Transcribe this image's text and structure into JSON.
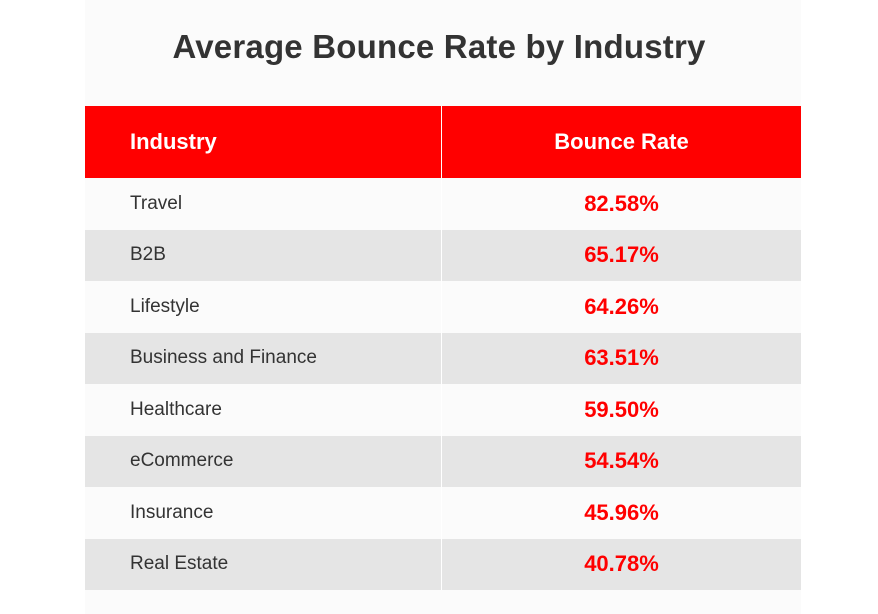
{
  "title": "Average Bounce Rate by Industry",
  "header": {
    "industry": "Industry",
    "bounce_rate": "Bounce Rate"
  },
  "colors": {
    "header_bg": "#ff0000",
    "value_text": "#ff0000",
    "row_alt": "#e5e5e5",
    "title_text": "#333333"
  },
  "chart_data": {
    "type": "table",
    "title": "Average Bounce Rate by Industry",
    "columns": [
      "Industry",
      "Bounce Rate"
    ],
    "rows": [
      {
        "industry": "Travel",
        "bounce_rate": "82.58%"
      },
      {
        "industry": "B2B",
        "bounce_rate": "65.17%"
      },
      {
        "industry": "Lifestyle",
        "bounce_rate": "64.26%"
      },
      {
        "industry": "Business and Finance",
        "bounce_rate": "63.51%"
      },
      {
        "industry": "Healthcare",
        "bounce_rate": "59.50%"
      },
      {
        "industry": "eCommerce",
        "bounce_rate": "54.54%"
      },
      {
        "industry": "Insurance",
        "bounce_rate": "45.96%"
      },
      {
        "industry": "Real Estate",
        "bounce_rate": "40.78%"
      }
    ]
  }
}
